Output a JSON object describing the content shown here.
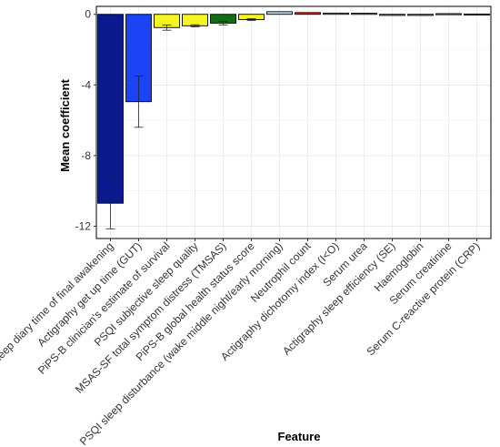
{
  "chart_data": {
    "type": "bar",
    "title": "",
    "xlabel": "Feature",
    "ylabel": "Mean coefficient",
    "ylim": [
      -12.7,
      0.45
    ],
    "yticks": [
      0,
      -4,
      -8,
      -12
    ],
    "ytick_labels": [
      "0",
      "-4",
      "-8",
      "-12"
    ],
    "grid": true,
    "legend": "none",
    "categories": [
      "Sleep diary time of final awakening",
      "Actigraphy get up time (GUT)",
      "PiPS-B clinician's estimate of survival",
      "PSQI subjective sleep quality",
      "MSAS-SF total symptom distress (TMSAS)",
      "PiPS-B global health status score",
      "PSQI sleep disturbance (wake middle night/early morning)",
      "Neutrophil count",
      "Actigraphy dichotomy index (I<O)",
      "Serum urea",
      "Actigraphy sleep efficiency (SE)",
      "Haemoglobin",
      "Serum creatinine",
      "Serum C-reactive protein (CRP)"
    ],
    "values": [
      -10.7,
      -4.95,
      -0.75,
      -0.65,
      -0.5,
      -0.3,
      0.15,
      0.1,
      0.07,
      0.06,
      -0.05,
      -0.04,
      0.04,
      0.02
    ],
    "errors": [
      1.45,
      1.45,
      0.15,
      0.06,
      0.1,
      0.05,
      0,
      0,
      0,
      0,
      0,
      0,
      0,
      0
    ],
    "colors": [
      "#0a1a8c",
      "#1a44f5",
      "#f5f523",
      "#f5f523",
      "#156a15",
      "#f5f523",
      "#bcd6e6",
      "#d94040",
      "#bcd6e6",
      "#bcd6e6",
      "#bcd6e6",
      "#bcd6e6",
      "#bcd6e6",
      "#bcd6e6"
    ]
  }
}
